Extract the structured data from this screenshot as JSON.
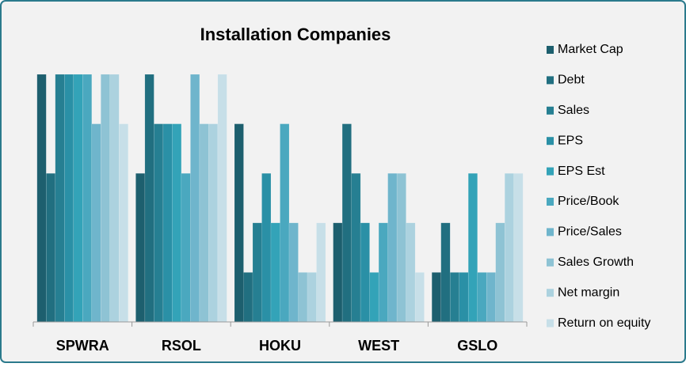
{
  "chart_data": {
    "type": "bar",
    "title": "Installation Companies",
    "categories": [
      "SPWRA",
      "RSOL",
      "HOKU",
      "WEST",
      "GSLO"
    ],
    "ylim": [
      0,
      5
    ],
    "series": [
      {
        "name": "Market Cap",
        "color": "#1d5f6e",
        "values": [
          5,
          3,
          4,
          2,
          1
        ]
      },
      {
        "name": "Debt",
        "color": "#216f80",
        "values": [
          3,
          5,
          1,
          4,
          2
        ]
      },
      {
        "name": "Sales",
        "color": "#267f92",
        "values": [
          5,
          4,
          2,
          3,
          1
        ]
      },
      {
        "name": "EPS",
        "color": "#2a90a6",
        "values": [
          5,
          4,
          3,
          2,
          1
        ]
      },
      {
        "name": "EPS Est",
        "color": "#33a3b8",
        "values": [
          5,
          4,
          2,
          1,
          3
        ]
      },
      {
        "name": "Price/Book",
        "color": "#4aa8bf",
        "values": [
          5,
          3,
          4,
          2,
          1
        ]
      },
      {
        "name": "Price/Sales",
        "color": "#6fb5cc",
        "values": [
          4,
          5,
          2,
          3,
          1
        ]
      },
      {
        "name": "Sales Growth",
        "color": "#8ec3d4",
        "values": [
          5,
          4,
          1,
          3,
          2
        ]
      },
      {
        "name": "Net margin",
        "color": "#acd2df",
        "values": [
          5,
          4,
          1,
          2,
          3
        ]
      },
      {
        "name": "Return on equity",
        "color": "#c7dfe8",
        "values": [
          4,
          5,
          2,
          1,
          3
        ]
      }
    ]
  }
}
